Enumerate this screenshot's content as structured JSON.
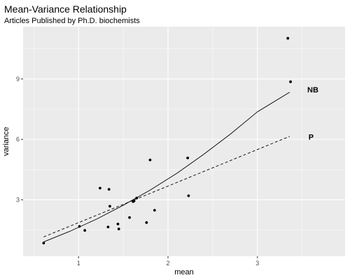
{
  "chart_data": {
    "type": "scatter",
    "title": "Mean-Variance Relationship",
    "subtitle": "Articles Published by Ph.D. biochemists",
    "xlabel": "mean",
    "ylabel": "variance",
    "xlim": [
      0.38,
      3.98
    ],
    "ylim": [
      0.2,
      11.6
    ],
    "x_ticks": [
      1,
      2,
      3
    ],
    "y_ticks": [
      3,
      6,
      9
    ],
    "grid": true,
    "points": [
      {
        "x": 0.61,
        "y": 0.85
      },
      {
        "x": 1.01,
        "y": 1.68
      },
      {
        "x": 1.07,
        "y": 1.48
      },
      {
        "x": 1.24,
        "y": 3.58
      },
      {
        "x": 1.33,
        "y": 1.65
      },
      {
        "x": 1.34,
        "y": 3.52
      },
      {
        "x": 1.35,
        "y": 2.68
      },
      {
        "x": 1.44,
        "y": 1.8
      },
      {
        "x": 1.45,
        "y": 1.55
      },
      {
        "x": 1.57,
        "y": 2.12
      },
      {
        "x": 1.61,
        "y": 2.91
      },
      {
        "x": 1.62,
        "y": 2.94
      },
      {
        "x": 1.65,
        "y": 3.09
      },
      {
        "x": 1.76,
        "y": 1.87
      },
      {
        "x": 1.8,
        "y": 4.98
      },
      {
        "x": 1.85,
        "y": 2.48
      },
      {
        "x": 2.22,
        "y": 5.08
      },
      {
        "x": 2.23,
        "y": 3.2
      },
      {
        "x": 3.34,
        "y": 11.02
      },
      {
        "x": 3.37,
        "y": 8.86
      }
    ],
    "lines": [
      {
        "name": "NB",
        "style": "solid",
        "x": [
          0.61,
          0.9,
          1.2,
          1.5,
          1.8,
          2.1,
          2.4,
          2.7,
          3.0,
          3.36
        ],
        "y": [
          0.91,
          1.43,
          2.04,
          2.73,
          3.48,
          4.32,
          5.26,
          6.27,
          7.37,
          8.34
        ]
      },
      {
        "name": "P",
        "style": "dashed",
        "x": [
          0.61,
          3.36
        ],
        "y": [
          1.16,
          6.15
        ]
      }
    ],
    "annotations": [
      {
        "text": "NB",
        "x": 3.62,
        "y": 8.47
      },
      {
        "text": "P",
        "x": 3.6,
        "y": 6.13
      }
    ]
  }
}
